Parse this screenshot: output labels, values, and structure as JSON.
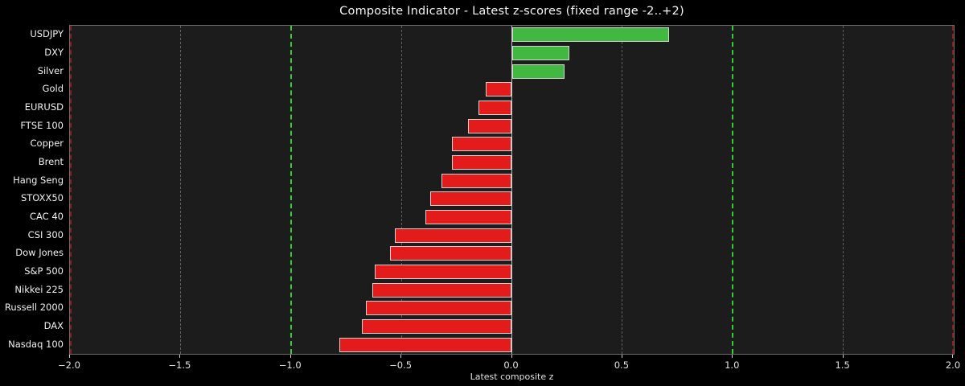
{
  "chart_data": {
    "type": "bar",
    "orientation": "horizontal",
    "title": "Composite Indicator - Latest z-scores (fixed range -2..+2)",
    "xlabel": "Latest composite z",
    "categories": [
      "USDJPY",
      "DXY",
      "Silver",
      "Gold",
      "EURUSD",
      "FTSE 100",
      "Copper",
      "Brent",
      "Hang Seng",
      "STOXX50",
      "CAC 40",
      "CSI 300",
      "Dow Jones",
      "S&P 500",
      "Nikkei 225",
      "Russell 2000",
      "DAX",
      "Nasdaq 100"
    ],
    "values": [
      0.71,
      0.26,
      0.24,
      -0.12,
      -0.15,
      -0.2,
      -0.27,
      -0.27,
      -0.32,
      -0.37,
      -0.39,
      -0.53,
      -0.55,
      -0.62,
      -0.63,
      -0.66,
      -0.68,
      -0.78
    ],
    "xlim": [
      -2.0,
      2.0
    ],
    "x_ticks": [
      -2.0,
      -1.5,
      -1.0,
      -0.5,
      0.0,
      0.5,
      1.0,
      1.5,
      2.0
    ],
    "x_tick_labels": [
      "−2.0",
      "−1.5",
      "−1.0",
      "−0.5",
      "0.0",
      "0.5",
      "1.0",
      "1.5",
      "2.0"
    ],
    "grid": "vertical-dashed",
    "legend": "none",
    "reference_lines": [
      {
        "x": -2.0,
        "kind": "limit"
      },
      {
        "x": -1.5,
        "kind": "grid"
      },
      {
        "x": -1.0,
        "kind": "signal"
      },
      {
        "x": -0.5,
        "kind": "grid"
      },
      {
        "x": 0.0,
        "kind": "zero"
      },
      {
        "x": 0.5,
        "kind": "grid"
      },
      {
        "x": 1.0,
        "kind": "signal"
      },
      {
        "x": 1.5,
        "kind": "grid"
      },
      {
        "x": 2.0,
        "kind": "limit"
      }
    ],
    "colors": {
      "positive_bar": "#41b941",
      "negative_bar": "#e31b1b",
      "bar_edge": "#d4d4d4",
      "signal_line": "#32cd32",
      "limit_line": "#8b1e1e",
      "grid_line": "#5f5f5f",
      "zero_line": "#c4c4c4",
      "plot_background": "#1c1c1c",
      "figure_background": "#000000",
      "text": "#f0f0f0"
    }
  }
}
